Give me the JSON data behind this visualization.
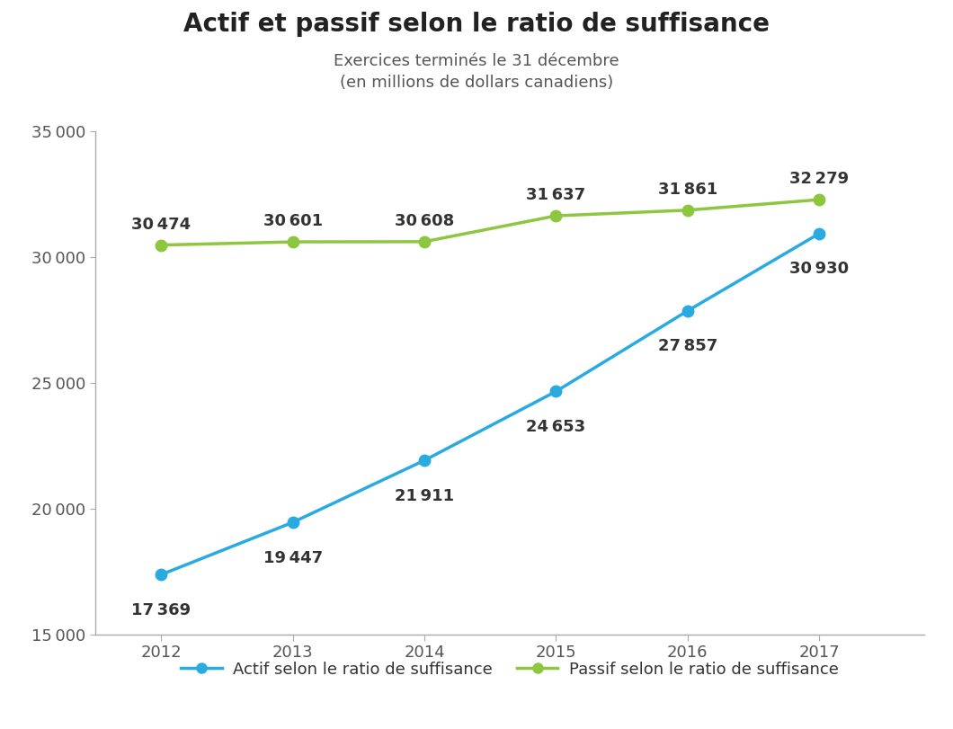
{
  "title": "Actif et passif selon le ratio de suffisance",
  "subtitle_line1": "Exercices terminés le 31 décembre",
  "subtitle_line2": "(en millions de dollars canadiens)",
  "years": [
    2012,
    2013,
    2014,
    2015,
    2016,
    2017
  ],
  "actif": [
    17369,
    19447,
    21911,
    24653,
    27857,
    30930
  ],
  "passif": [
    30474,
    30601,
    30608,
    31637,
    31861,
    32279
  ],
  "actif_color": "#29ABE2",
  "passif_color": "#8DC63F",
  "ylim": [
    15000,
    35000
  ],
  "yticks": [
    15000,
    20000,
    25000,
    30000,
    35000
  ],
  "legend_actif": "Actif selon le ratio de suffisance",
  "legend_passif": "Passif selon le ratio de suffisance",
  "background_color": "#ffffff",
  "title_fontsize": 20,
  "subtitle_fontsize": 13,
  "tick_fontsize": 13,
  "label_fontsize": 13,
  "annotation_fontsize": 13
}
